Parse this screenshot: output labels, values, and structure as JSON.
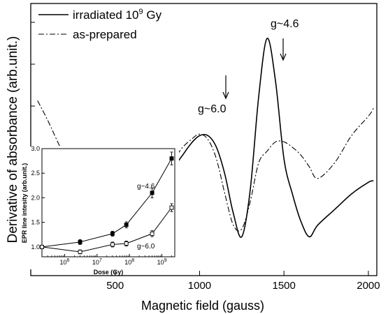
{
  "chart_data": [
    {
      "type": "line",
      "title": "",
      "xlabel": "Magnetic field (gauss)",
      "ylabel": "Derivative of absorbance (arb.unit.)",
      "xlim": [
        0,
        2050
      ],
      "xticks": [
        500,
        1000,
        1500,
        2000
      ],
      "xtick_labels": [
        "500",
        "1000",
        "1500",
        "2000"
      ],
      "y_ticks_labeled": false,
      "legend": {
        "placement": "top-left",
        "entries": [
          {
            "base": "irradiated 10",
            "sup": "9",
            "tail": " Gy",
            "style": "solid"
          },
          {
            "base": "as-prepared",
            "sup": "",
            "tail": "",
            "style": "dash-dot"
          }
        ]
      },
      "annotations": [
        {
          "text": "g~6.0",
          "x": 1150
        },
        {
          "text": "g~4.6",
          "x": 1490
        }
      ],
      "series": [
        {
          "name": "irradiated 10^9 Gy",
          "style": "solid",
          "x": [
            40,
            100,
            200,
            300,
            400,
            500,
            600,
            650,
            700,
            750,
            800,
            850,
            900,
            950,
            1000,
            1050,
            1100,
            1150,
            1200,
            1250,
            1300,
            1350,
            1400,
            1450,
            1500,
            1550,
            1600,
            1650,
            1700,
            1800,
            1900,
            2000,
            2030
          ],
          "y": [
            0.4,
            0.34,
            0.3,
            0.33,
            0.4,
            0.46,
            0.52,
            0.42,
            0.33,
            0.45,
            0.7,
            0.9,
            1.05,
            1.2,
            1.3,
            1.3,
            1.15,
            0.8,
            0.3,
            0.0,
            0.6,
            1.8,
            2.55,
            2.0,
            1.0,
            0.55,
            0.2,
            0.0,
            0.15,
            0.35,
            0.55,
            0.7,
            0.72
          ]
        },
        {
          "name": "as-prepared",
          "style": "dash-dot",
          "x": [
            40,
            100,
            200,
            300,
            400,
            500,
            600,
            650,
            700,
            750,
            800,
            850,
            900,
            950,
            1000,
            1050,
            1100,
            1150,
            1200,
            1250,
            1300,
            1350,
            1400,
            1450,
            1500,
            1550,
            1600,
            1650,
            1700,
            1800,
            1900,
            2000,
            2030
          ],
          "y": [
            1.75,
            1.5,
            1.05,
            0.78,
            0.7,
            0.7,
            0.62,
            0.62,
            0.7,
            0.82,
            0.85,
            1.0,
            1.15,
            1.25,
            1.32,
            1.25,
            1.0,
            0.55,
            0.15,
            0.1,
            0.45,
            0.95,
            1.1,
            1.22,
            1.22,
            1.15,
            1.05,
            0.9,
            0.75,
            0.95,
            1.3,
            1.55,
            1.65
          ]
        }
      ]
    },
    {
      "type": "line",
      "title": "",
      "placement": "inset, lower-left",
      "xlabel": "Dose (Gy)",
      "ylabel": "EPR line intesity (arb.unit.)",
      "xscale": "log",
      "xlim": [
        200000,
        2500000000
      ],
      "ylim": [
        0.8,
        3.0
      ],
      "xticks": [
        {
          "base": "10",
          "exp": "6",
          "value": 1000000
        },
        {
          "base": "10",
          "exp": "7",
          "value": 10000000
        },
        {
          "base": "10",
          "exp": "8",
          "value": 100000000
        },
        {
          "base": "10",
          "exp": "9",
          "value": 1000000000
        }
      ],
      "yticks": [
        1.0,
        1.5,
        2.0,
        2.5,
        3.0
      ],
      "ytick_labels": [
        "1.0",
        "1.5",
        "2.0",
        "2.5",
        "3.0"
      ],
      "series": [
        {
          "name": "g~4.6",
          "marker": "filled-square",
          "x": [
            200000,
            3000000,
            30000000,
            80000000,
            500000000,
            2000000000
          ],
          "y": [
            1.0,
            1.1,
            1.27,
            1.45,
            2.1,
            2.8
          ],
          "err": [
            0.03,
            0.05,
            0.05,
            0.06,
            0.1,
            0.13
          ]
        },
        {
          "name": "g~6.0",
          "marker": "open-square",
          "x": [
            200000,
            3000000,
            30000000,
            80000000,
            500000000,
            2000000000
          ],
          "y": [
            1.0,
            0.9,
            1.05,
            1.07,
            1.27,
            1.8
          ],
          "err": [
            0.03,
            0.04,
            0.05,
            0.05,
            0.06,
            0.08
          ]
        }
      ]
    }
  ]
}
